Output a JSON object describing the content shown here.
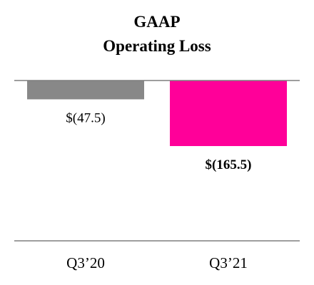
{
  "chart_data": {
    "type": "bar",
    "title_lines": [
      "GAAP",
      "Operating Loss"
    ],
    "categories": [
      "Q3’20",
      "Q3’21"
    ],
    "values": [
      -47.5,
      -165.5
    ],
    "value_labels": [
      "$(47.5)",
      "$(165.5)"
    ],
    "value_label_bold": [
      false,
      true
    ],
    "colors": [
      "#888888",
      "#ff0099"
    ],
    "ylim": [
      -300,
      0
    ],
    "grid": false,
    "legend": "none",
    "xlabel": "",
    "ylabel": ""
  }
}
